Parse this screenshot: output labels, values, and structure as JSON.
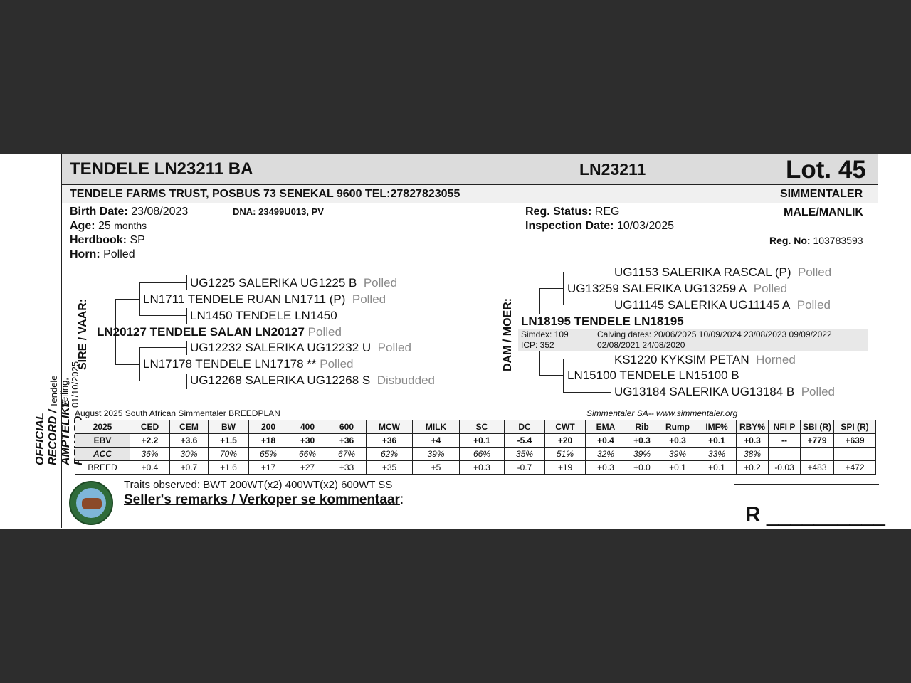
{
  "side_label": {
    "title": "OFFICIAL RECORD / AMPTELIKE REKORD",
    "sub": "Tendele Veiling, 01/10/2025"
  },
  "header": {
    "name": "TENDELE LN23211 BA",
    "id": "LN23211",
    "lot": "Lot. 45"
  },
  "owner": {
    "text": "TENDELE FARMS TRUST, POSBUS 73 SENEKAL 9600 TEL:27827823055",
    "breed": "SIMMENTALER"
  },
  "details": {
    "birth_label": "Birth Date:",
    "birth_value": "23/08/2023",
    "dna": "DNA: 23499U013, PV",
    "age_label": "Age:",
    "age_value": "25",
    "age_unit": "months",
    "herdbook_label": "Herdbook:",
    "herdbook_value": "SP",
    "horn_label": "Horn:",
    "horn_value": "Polled",
    "reg_status_label": "Reg. Status:",
    "reg_status_value": "REG",
    "inspection_label": "Inspection Date:",
    "inspection_value": "10/03/2025",
    "sex": "MALE/MANLIK",
    "reg_no_label": "Reg. No:",
    "reg_no_value": "103783593"
  },
  "sire": {
    "label": "SIRE / VAAR:",
    "name": "LN20127 TENDELE SALAN LN20127",
    "horn": "Polled",
    "s": {
      "name": "LN1711 TENDELE RUAN LN1711 (P)",
      "horn": "Polled"
    },
    "ss": {
      "name": "UG1225 SALERIKA UG1225 B",
      "horn": "Polled"
    },
    "sd": {
      "name": "LN1450 TENDELE LN1450",
      "horn": ""
    },
    "d": {
      "name": "LN17178 TENDELE LN17178 **",
      "horn": "Polled"
    },
    "ds": {
      "name": "UG12232 SALERIKA UG12232 U",
      "horn": "Polled"
    },
    "dd": {
      "name": "UG12268 SALERIKA UG12268 S",
      "horn": "Disbudded"
    }
  },
  "dam": {
    "label": "DAM / MOER:",
    "name": "LN18195 TENDELE LN18195",
    "simdex": "Simdex: 109",
    "icp": "ICP: 352",
    "calving1": "Calving dates: 20/06/2025  10/09/2024  23/08/2023  09/09/2022",
    "calving2": "02/08/2021  24/08/2020",
    "s": {
      "name": "UG13259 SALERIKA UG13259 A",
      "horn": "Polled"
    },
    "ss": {
      "name": "UG1153 SALERIKA RASCAL (P)",
      "horn": "Polled"
    },
    "sd": {
      "name": "UG11145 SALERIKA UG11145 A",
      "horn": "Polled"
    },
    "d": {
      "name": "LN15100 TENDELE LN15100 B",
      "horn": ""
    },
    "ds": {
      "name": "KS1220 KYKSIM PETAN",
      "horn": "Horned"
    },
    "dd": {
      "name": "UG13184 SALERIKA UG13184 B",
      "horn": "Polled"
    }
  },
  "breedplan": {
    "caption_left": "August 2025 South African Simmentaler BREEDPLAN",
    "caption_right": "Simmentaler SA-- www.simmentaler.org",
    "headers": [
      "2025",
      "CED",
      "CEM",
      "BW",
      "200",
      "400",
      "600",
      "MCW",
      "MILK",
      "SC",
      "DC",
      "CWT",
      "EMA",
      "Rib",
      "Rump",
      "IMF%",
      "RBY%",
      "NFI P",
      "SBI (R)",
      "SPI (R)"
    ],
    "ebv": [
      "EBV",
      "+2.2",
      "+3.6",
      "+1.5",
      "+18",
      "+30",
      "+36",
      "+36",
      "+4",
      "+0.1",
      "-5.4",
      "+20",
      "+0.4",
      "+0.3",
      "+0.3",
      "+0.1",
      "+0.3",
      "--",
      "+779",
      "+639"
    ],
    "acc": [
      "ACC",
      "36%",
      "30%",
      "70%",
      "65%",
      "66%",
      "67%",
      "62%",
      "39%",
      "66%",
      "35%",
      "51%",
      "32%",
      "39%",
      "39%",
      "33%",
      "38%",
      "",
      "",
      ""
    ],
    "breed": [
      "BREED",
      "+0.4",
      "+0.7",
      "+1.6",
      "+17",
      "+27",
      "+33",
      "+35",
      "+5",
      "+0.3",
      "-0.7",
      "+19",
      "+0.3",
      "+0.0",
      "+0.1",
      "+0.1",
      "+0.2",
      "-0.03",
      "+483",
      "+472"
    ]
  },
  "footer": {
    "traits": "Traits observed: BWT  200WT(x2)  400WT(x2)  600WT  SS",
    "remarks": "Seller's remarks / Verkoper se kommentaar",
    "remarks_colon": ":",
    "price_prefix": "R",
    "price_blank": "__________"
  }
}
